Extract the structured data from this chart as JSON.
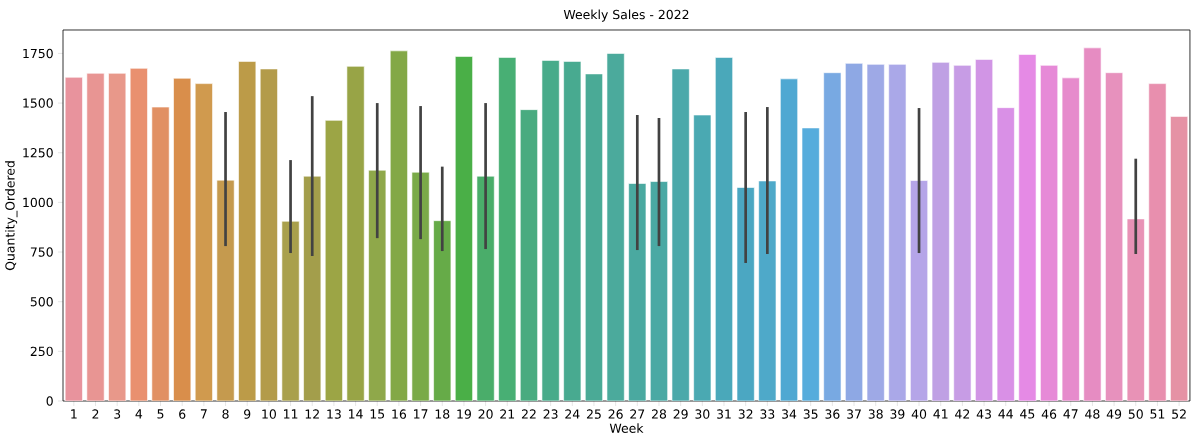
{
  "chart_data": {
    "type": "bar",
    "title": "Weekly Sales - 2022",
    "xlabel": "Week",
    "ylabel": "Quantity_Ordered",
    "categories": [
      "1",
      "2",
      "3",
      "4",
      "5",
      "6",
      "7",
      "8",
      "9",
      "10",
      "11",
      "12",
      "13",
      "14",
      "15",
      "16",
      "17",
      "18",
      "19",
      "20",
      "21",
      "22",
      "23",
      "24",
      "25",
      "26",
      "27",
      "28",
      "29",
      "30",
      "31",
      "32",
      "33",
      "34",
      "35",
      "36",
      "37",
      "38",
      "39",
      "40",
      "41",
      "42",
      "43",
      "44",
      "45",
      "46",
      "47",
      "48",
      "49",
      "50",
      "51",
      "52"
    ],
    "values": [
      1630,
      1650,
      1650,
      1675,
      1480,
      1625,
      1598,
      1112,
      1710,
      1672,
      905,
      1132,
      1413,
      1685,
      1162,
      1763,
      1152,
      908,
      1735,
      1132,
      1730,
      1467,
      1715,
      1710,
      1647,
      1750,
      1095,
      1105,
      1672,
      1440,
      1730,
      1075,
      1108,
      1622,
      1375,
      1653,
      1700,
      1695,
      1695,
      1110,
      1705,
      1690,
      1720,
      1477,
      1745,
      1690,
      1627,
      1778,
      1653,
      917,
      1598,
      1433
    ],
    "errors": [
      null,
      null,
      null,
      null,
      null,
      null,
      null,
      [
        780,
        1455
      ],
      null,
      null,
      [
        745,
        1213
      ],
      [
        730,
        1535
      ],
      null,
      null,
      [
        820,
        1500
      ],
      null,
      [
        815,
        1485
      ],
      [
        755,
        1180
      ],
      null,
      [
        765,
        1500
      ],
      null,
      null,
      null,
      null,
      null,
      null,
      [
        760,
        1440
      ],
      [
        780,
        1425
      ],
      null,
      null,
      null,
      [
        695,
        1455
      ],
      [
        740,
        1480
      ],
      null,
      null,
      null,
      null,
      null,
      null,
      [
        745,
        1475
      ],
      null,
      null,
      null,
      null,
      null,
      null,
      null,
      null,
      null,
      [
        740,
        1220
      ],
      null,
      null
    ],
    "colors": [
      "#e8939d",
      "#e89593",
      "#e8988a",
      "#e9906f",
      "#e19063",
      "#d98e4b",
      "#d09a4e",
      "#c59a4e",
      "#bc9b48",
      "#b39b4a",
      "#a9a04c",
      "#a39e4b",
      "#9ca545",
      "#98a446",
      "#8fa84a",
      "#83a846",
      "#7aaa48",
      "#66ab48",
      "#4aaf47",
      "#4aad6a",
      "#48af74",
      "#49ab80",
      "#48ab8a",
      "#48aa90",
      "#4aaa96",
      "#4baa9c",
      "#4aa9a0",
      "#4aa9a4",
      "#4ba9aa",
      "#4aa9b2",
      "#4aa8ba",
      "#4ba7c2",
      "#4ea9c9",
      "#4fa8d2",
      "#56acdc",
      "#78a9e2",
      "#8ea8e4",
      "#9ea9e6",
      "#aaa8e8",
      "#b5a5e8",
      "#bfa0e4",
      "#c79ce5",
      "#d195e5",
      "#d990e6",
      "#e58ae5",
      "#e68ad7",
      "#e68bcc",
      "#e68cc2",
      "#e791bd",
      "#e892b6",
      "#e88fae",
      "#e592a5"
    ],
    "ylim": [
      0,
      1868
    ],
    "yticks": [
      0,
      250,
      500,
      750,
      1000,
      1250,
      1500,
      1750
    ]
  }
}
